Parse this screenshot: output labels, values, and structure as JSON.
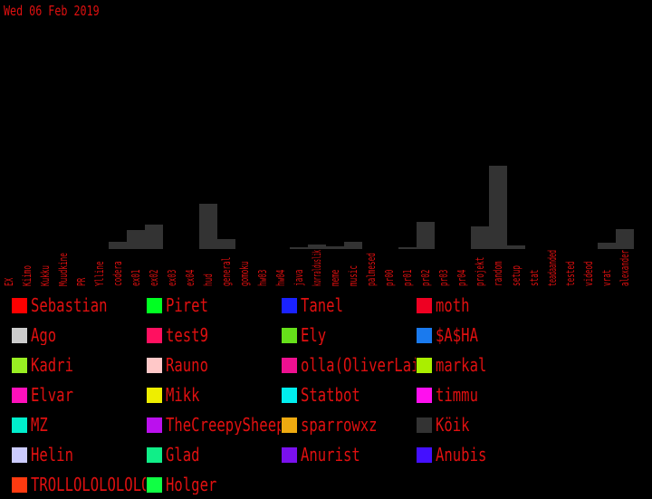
{
  "date_label": "Wed 06 Feb 2019",
  "chart_data": {
    "type": "bar",
    "title": "",
    "xlabel": "",
    "ylabel": "",
    "ylim": [
      0,
      92
    ],
    "bar_color": "#333333",
    "label_color": "#e01010",
    "categories": [
      "EX",
      "Kiimo",
      "Kukku",
      "Muudkine",
      "PR",
      "Ylline",
      "codera",
      "ex01",
      "ex02",
      "ex03",
      "ex04",
      "hud",
      "general",
      "gomoku",
      "hw03",
      "hw04",
      "java",
      "korralduslik",
      "meme",
      "music",
      "palmesed",
      "pr00",
      "pr01",
      "pr02",
      "pr03",
      "pr04",
      "projekt",
      "random",
      "setup",
      "stat",
      "teadaanded",
      "tested",
      "videod",
      "vrat",
      "alexander"
    ],
    "values": [
      0,
      0,
      0,
      0,
      0,
      0,
      8,
      21,
      27,
      0,
      0,
      50,
      11,
      0,
      0,
      0,
      2,
      5,
      3,
      8,
      0,
      0,
      2,
      30,
      0,
      0,
      25,
      92,
      4,
      0,
      0,
      0,
      0,
      7,
      22
    ]
  },
  "legend": [
    {
      "name": "Sebastian",
      "color": "#ff0000"
    },
    {
      "name": "Piret",
      "color": "#00ff22"
    },
    {
      "name": "Tanel",
      "color": "#1a22ff"
    },
    {
      "name": "moth",
      "color": "#ee0022"
    },
    {
      "name": "Ago",
      "color": "#cccccc"
    },
    {
      "name": "test9",
      "color": "#ff1060"
    },
    {
      "name": "Ely",
      "color": "#66e01a"
    },
    {
      "name": "$A$HA",
      "color": "#1a7aee"
    },
    {
      "name": "Kadri",
      "color": "#99ee22"
    },
    {
      "name": "Rauno",
      "color": "#ffc8c8"
    },
    {
      "name": "olla(OliverLaidma)",
      "color": "#ee1090"
    },
    {
      "name": "markal",
      "color": "#aaee00"
    },
    {
      "name": "Elvar",
      "color": "#ff10bb"
    },
    {
      "name": "Mikk",
      "color": "#eeee00"
    },
    {
      "name": "Statbot",
      "color": "#00eeee"
    },
    {
      "name": "timmu",
      "color": "#ff10ee"
    },
    {
      "name": "MZ",
      "color": "#00eecc"
    },
    {
      "name": "TheCreepySheep",
      "color": "#bb10ee"
    },
    {
      "name": "sparrowxz",
      "color": "#eeaa10"
    },
    {
      "name": "Köik",
      "color": "#333333"
    },
    {
      "name": "Helin",
      "color": "#ccccff"
    },
    {
      "name": "Glad",
      "color": "#10ee88"
    },
    {
      "name": "Anurist",
      "color": "#7a10ee"
    },
    {
      "name": "Anubis",
      "color": "#4410ff"
    },
    {
      "name": "TROLLOLOLOLOLOLO",
      "color": "#ff3a10"
    },
    {
      "name": "Holger",
      "color": "#10ff44"
    }
  ]
}
